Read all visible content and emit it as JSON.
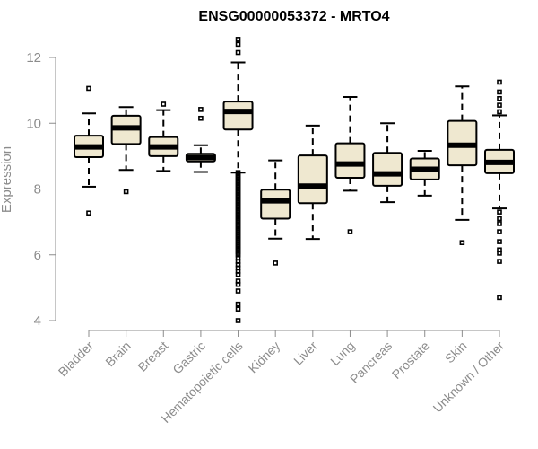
{
  "chart_data": {
    "type": "boxplot",
    "title": "ENSG00000053372 - MRTO4",
    "ylabel": "Expression",
    "xlabel": "",
    "ylim": [
      4,
      12
    ],
    "yticks": [
      4,
      6,
      8,
      10,
      12
    ],
    "box_fill": "#efe8d0",
    "categories": [
      "Bladder",
      "Brain",
      "Breast",
      "Gastric",
      "Hematopoietic cells",
      "Kidney",
      "Liver",
      "Lung",
      "Pancreas",
      "Prostate",
      "Skin",
      "Unknown / Other"
    ],
    "boxes": [
      {
        "category": "Bladder",
        "whisker_low": 8.07,
        "q1": 8.97,
        "median": 9.28,
        "q3": 9.62,
        "whisker_high": 10.3,
        "outliers": [
          11.06,
          7.27
        ]
      },
      {
        "category": "Brain",
        "whisker_low": 8.58,
        "q1": 9.37,
        "median": 9.86,
        "q3": 10.23,
        "whisker_high": 10.49,
        "outliers": [
          7.92
        ]
      },
      {
        "category": "Breast",
        "whisker_low": 8.55,
        "q1": 9.0,
        "median": 9.28,
        "q3": 9.58,
        "whisker_high": 10.4,
        "outliers": [
          10.58
        ]
      },
      {
        "category": "Gastric",
        "whisker_low": 8.52,
        "q1": 8.84,
        "median": 8.96,
        "q3": 9.07,
        "whisker_high": 9.33,
        "outliers": [
          10.42,
          10.15
        ]
      },
      {
        "category": "Hematopoietic cells",
        "whisker_low": 8.5,
        "q1": 9.81,
        "median": 10.36,
        "q3": 10.66,
        "whisker_high": 11.85,
        "outliers": [
          12.55,
          12.4,
          12.15,
          8.5,
          8.45,
          8.4,
          8.35,
          8.3,
          8.25,
          8.2,
          8.15,
          8.1,
          8.05,
          8.0,
          7.95,
          7.9,
          7.85,
          7.8,
          7.75,
          7.7,
          7.65,
          7.6,
          7.55,
          7.5,
          7.45,
          7.4,
          7.35,
          7.3,
          7.25,
          7.2,
          7.15,
          7.1,
          7.05,
          7.0,
          6.95,
          6.9,
          6.85,
          6.8,
          6.75,
          6.7,
          6.65,
          6.6,
          6.55,
          6.5,
          6.45,
          6.4,
          6.35,
          6.3,
          6.25,
          6.2,
          6.15,
          6.1,
          6.05,
          6.0,
          5.9,
          5.8,
          5.7,
          5.6,
          5.5,
          5.4,
          5.2,
          5.1,
          4.9,
          4.5,
          4.35,
          4.0
        ]
      },
      {
        "category": "Kidney",
        "whisker_low": 6.49,
        "q1": 7.1,
        "median": 7.64,
        "q3": 7.98,
        "whisker_high": 8.87,
        "outliers": [
          5.75
        ]
      },
      {
        "category": "Liver",
        "whisker_low": 6.48,
        "q1": 7.57,
        "median": 8.09,
        "q3": 9.02,
        "whisker_high": 9.93,
        "outliers": []
      },
      {
        "category": "Lung",
        "whisker_low": 7.95,
        "q1": 8.34,
        "median": 8.76,
        "q3": 9.39,
        "whisker_high": 10.8,
        "outliers": [
          6.7
        ]
      },
      {
        "category": "Pancreas",
        "whisker_low": 7.6,
        "q1": 8.1,
        "median": 8.46,
        "q3": 9.1,
        "whisker_high": 10.0,
        "outliers": []
      },
      {
        "category": "Prostate",
        "whisker_low": 7.8,
        "q1": 8.29,
        "median": 8.6,
        "q3": 8.93,
        "whisker_high": 9.16,
        "outliers": []
      },
      {
        "category": "Skin",
        "whisker_low": 7.06,
        "q1": 8.72,
        "median": 9.33,
        "q3": 10.07,
        "whisker_high": 11.12,
        "outliers": [
          6.37
        ]
      },
      {
        "category": "Unknown / Other",
        "whisker_low": 7.41,
        "q1": 8.48,
        "median": 8.81,
        "q3": 9.19,
        "whisker_high": 10.24,
        "outliers": [
          11.25,
          10.95,
          10.75,
          10.55,
          10.35,
          7.3,
          7.1,
          6.95,
          6.7,
          6.4,
          6.15,
          6.05,
          5.8,
          4.7
        ]
      }
    ]
  }
}
